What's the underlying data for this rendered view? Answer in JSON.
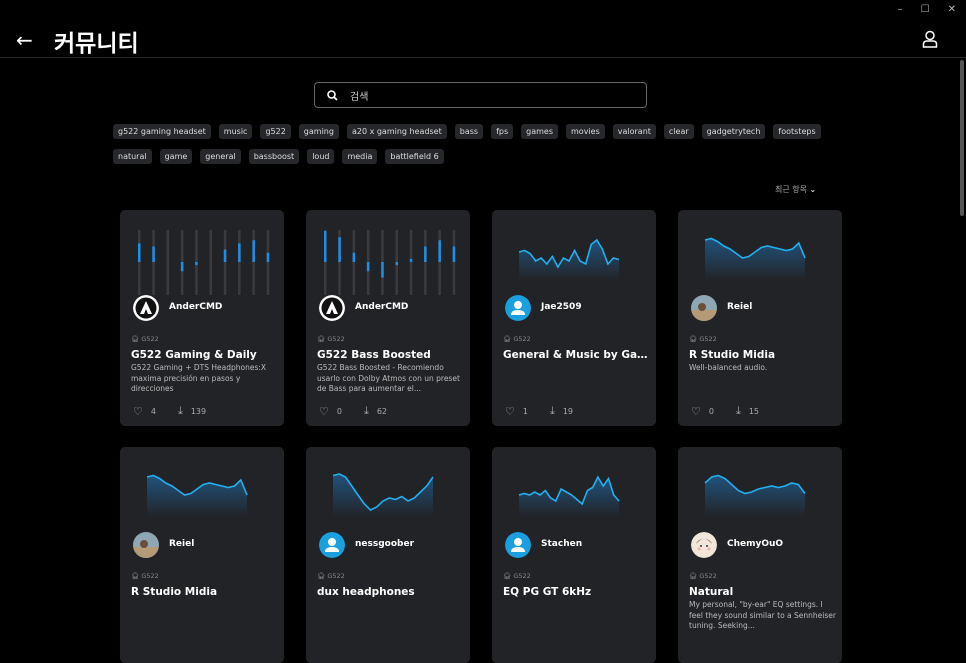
{
  "window": {
    "minimize": "–",
    "maximize": "☐",
    "close": "✕"
  },
  "header": {
    "back_icon": "←",
    "title": "커뮤니티"
  },
  "search": {
    "placeholder": "검색"
  },
  "tags": [
    "g522 gaming headset",
    "music",
    "g522",
    "gaming",
    "a20 x gaming headset",
    "bass",
    "fps",
    "games",
    "movies",
    "valorant",
    "clear",
    "gadgetrytech",
    "footsteps",
    "natural",
    "game",
    "general",
    "bassboost",
    "loud",
    "media",
    "battlefield 6"
  ],
  "sort": {
    "label": "최근 항목"
  },
  "accent": "#1e8fe6",
  "cards": [
    {
      "user": "AnderCMD",
      "avatar": "logo",
      "device": "G522",
      "title": "G522 Gaming & Daily",
      "desc": "G522 Gaming + DTS Headphones:X maxima precisión en pasos y direcciones",
      "likes": "4",
      "downloads": "139",
      "graph": "bars",
      "eq": [
        0.6,
        0.5,
        0,
        -0.3,
        -0.1,
        0,
        0.4,
        0.6,
        0.7,
        0.3
      ]
    },
    {
      "user": "AnderCMD",
      "avatar": "logo",
      "device": "G522",
      "title": "G522 Bass Boosted",
      "desc": "G522 Bass Boosted - Recomiendo usarlo con Dolby Atmos con un preset de Bass para aumentar el...",
      "likes": "0",
      "downloads": "62",
      "graph": "bars",
      "eq": [
        1.0,
        0.8,
        0.3,
        -0.3,
        -0.5,
        -0.1,
        0.1,
        0.5,
        0.7,
        0.5
      ]
    },
    {
      "user": "Jae2509",
      "avatar": "default",
      "device": "G522",
      "title": "General & Music by Gadgetrytech",
      "desc": "",
      "likes": "1",
      "downloads": "19",
      "graph": "curve",
      "eq": [
        0.5,
        0.55,
        0.45,
        0.2,
        0.3,
        0.1,
        0.35,
        0.0,
        0.3,
        0.2,
        0.55,
        0.2,
        0.1,
        0.75,
        0.9,
        0.6,
        0.1,
        0.3,
        0.25
      ]
    },
    {
      "user": "Reiel",
      "avatar": "photo",
      "device": "G522",
      "title": "R Studio Midia",
      "desc": "Well-balanced audio.",
      "likes": "0",
      "downloads": "15",
      "graph": "curve",
      "eq": [
        0.9,
        0.95,
        0.85,
        0.7,
        0.6,
        0.45,
        0.3,
        0.35,
        0.5,
        0.65,
        0.7,
        0.65,
        0.6,
        0.55,
        0.6,
        0.8,
        0.3
      ]
    },
    {
      "user": "Reiel",
      "avatar": "photo",
      "device": "G522",
      "title": "R Studio Midia",
      "desc": "",
      "likes": "",
      "downloads": "",
      "graph": "curve",
      "eq": [
        0.9,
        0.95,
        0.85,
        0.7,
        0.6,
        0.45,
        0.3,
        0.35,
        0.5,
        0.65,
        0.7,
        0.65,
        0.6,
        0.55,
        0.6,
        0.8,
        0.3
      ]
    },
    {
      "user": "nessgoober",
      "avatar": "default",
      "device": "G522",
      "title": "dux headphones",
      "desc": "",
      "likes": "",
      "downloads": "",
      "graph": "curve",
      "eq": [
        0.95,
        1,
        0.9,
        0.6,
        0.3,
        0.0,
        -0.2,
        -0.1,
        0.1,
        0.2,
        0.15,
        0.25,
        0.1,
        0.2,
        0.4,
        0.6,
        0.9
      ]
    },
    {
      "user": "Stachen",
      "avatar": "default",
      "device": "G522",
      "title": "EQ PG GT 6kHz",
      "desc": "",
      "likes": "",
      "downloads": "",
      "graph": "curve",
      "eq": [
        0.3,
        0.35,
        0.3,
        0.4,
        0.3,
        0.45,
        0.2,
        0.1,
        0.5,
        0.4,
        0.3,
        0.15,
        0.0,
        0.45,
        0.55,
        0.9,
        0.6,
        0.85,
        0.3,
        0.1
      ]
    },
    {
      "user": "ChemyOuO",
      "avatar": "cartoon",
      "device": "G522",
      "title": "Natural",
      "desc": "My personal, \"by-ear\" EQ settings. I feel they sound similar to a Sennheiser tuning. Seeking...",
      "likes": "",
      "downloads": "",
      "graph": "curve",
      "eq": [
        0.7,
        0.9,
        0.95,
        0.85,
        0.65,
        0.45,
        0.35,
        0.4,
        0.5,
        0.55,
        0.6,
        0.55,
        0.6,
        0.7,
        0.65,
        0.35
      ]
    }
  ]
}
